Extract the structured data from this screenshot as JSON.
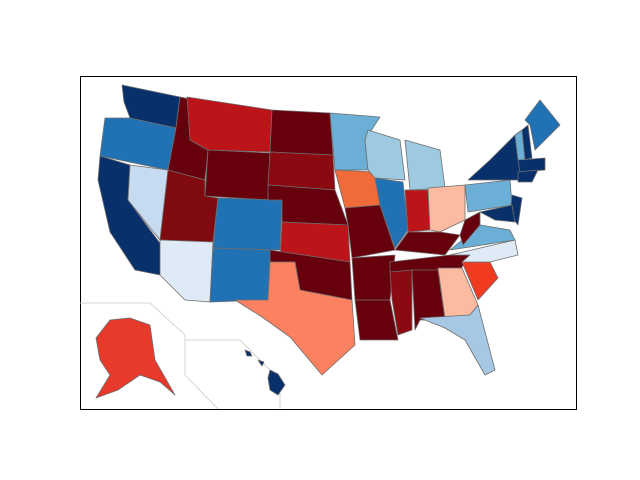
{
  "map": {
    "regions": [
      {
        "color": "#08306b"
      },
      {
        "color": "#2171b5"
      },
      {
        "color": "#08306b"
      },
      {
        "color": "#c6dbef"
      },
      {
        "color": "#67000d"
      },
      {
        "color": "#bb1419"
      },
      {
        "color": "#67000d"
      },
      {
        "color": "#7f0a10"
      },
      {
        "color": "#deebf7"
      },
      {
        "color": "#2171b5"
      },
      {
        "color": "#2171b5"
      },
      {
        "color": "#67000d"
      },
      {
        "color": "#8b0a12"
      },
      {
        "color": "#67000d"
      },
      {
        "color": "#bb1419"
      },
      {
        "color": "#67000d"
      },
      {
        "color": "#fc8161"
      },
      {
        "color": "#6baed6"
      },
      {
        "color": "#f06a3a"
      },
      {
        "color": "#67000d"
      },
      {
        "color": "#67000d"
      },
      {
        "color": "#67000d"
      },
      {
        "color": "#9ecae1"
      },
      {
        "color": "#2171b5"
      },
      {
        "color": "#9ecae1"
      },
      {
        "color": "#bb1419"
      },
      {
        "color": "#fcbba1"
      },
      {
        "color": "#67000d"
      },
      {
        "color": "#67000d"
      },
      {
        "color": "#8b0a12"
      },
      {
        "color": "#67000d"
      },
      {
        "color": "#fcbba1"
      },
      {
        "color": "#a6c8e4"
      },
      {
        "color": "#f03b20"
      },
      {
        "color": "#deebf7"
      },
      {
        "color": "#6baed6"
      },
      {
        "color": "#67000d"
      },
      {
        "color": "#6baed6"
      },
      {
        "color": "#08306b"
      },
      {
        "color": "#08306b"
      },
      {
        "color": "#08306b"
      },
      {
        "color": "#6baed6"
      },
      {
        "color": "#08306b"
      },
      {
        "color": "#2171b5"
      },
      {
        "color": "#08306b"
      },
      {
        "color": "#08306b"
      },
      {
        "color": "#e83a2a"
      },
      {
        "color": "#08306b"
      }
    ]
  }
}
